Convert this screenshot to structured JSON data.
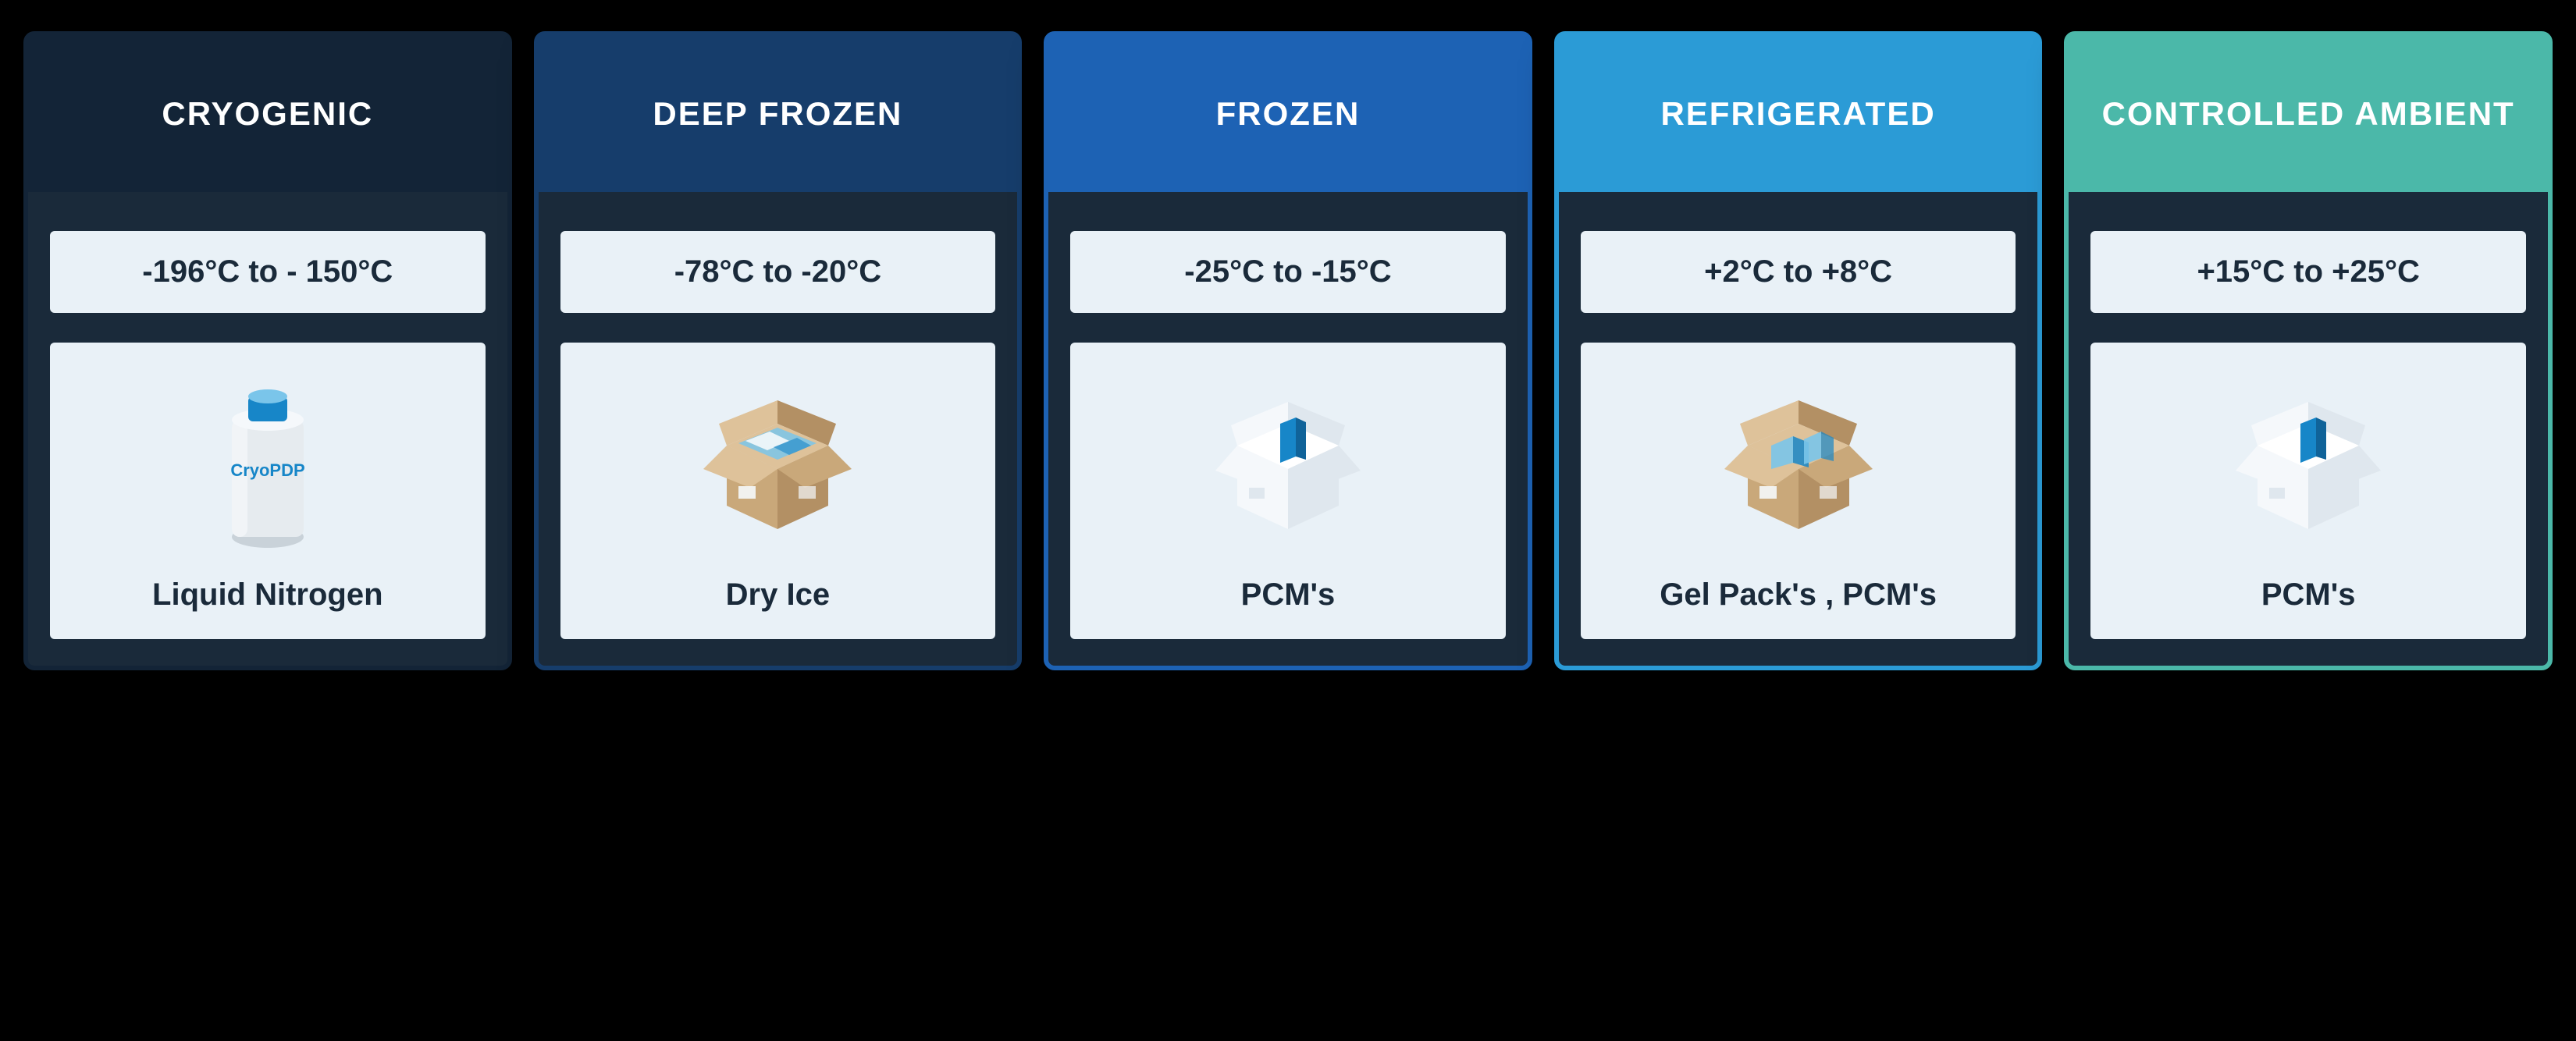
{
  "page_background": "#000000",
  "card_body_background": "#1a2a3a",
  "panel_background": "#e9f1f7",
  "categories": [
    {
      "title": "CRYOGENIC",
      "temp_range": "-196°C to - 150°C",
      "packaging": "Liquid Nitrogen",
      "accent_color": "#132437",
      "icon": "nitrogen-tank"
    },
    {
      "title": "DEEP FROZEN",
      "temp_range": "-78°C to -20°C",
      "packaging": "Dry Ice",
      "accent_color": "#163d6b",
      "icon": "dry-ice-box"
    },
    {
      "title": "FROZEN",
      "temp_range": "-25°C to -15°C",
      "packaging": "PCM's",
      "accent_color": "#1d62b4",
      "icon": "pcm-box-white"
    },
    {
      "title": "REFRIGERATED",
      "temp_range": "+2°C to +8°C",
      "packaging": "Gel Pack's , PCM's",
      "accent_color": "#2b9bd6",
      "icon": "gel-pack-box"
    },
    {
      "title": "CONTROLLED AMBIENT",
      "temp_range": "+15°C to +25°C",
      "packaging": "PCM's",
      "accent_color": "#4bb8a9",
      "icon": "pcm-box-white"
    }
  ],
  "icon_palette": {
    "box_brown": "#c9a87a",
    "box_brown_dark": "#b39064",
    "box_brown_light": "#dec29a",
    "white": "#f5f8fb",
    "white_shade": "#dfe7ee",
    "blue": "#1786c8",
    "blue_light": "#7ac5ea",
    "tank_body": "#e6ebef",
    "tank_shade": "#c9d2d9"
  },
  "typography": {
    "header_fontsize": 42,
    "header_weight": 600,
    "header_letterspacing": 2,
    "value_fontsize": 40,
    "value_weight": 600,
    "label_fontsize": 40,
    "label_weight": 600
  }
}
